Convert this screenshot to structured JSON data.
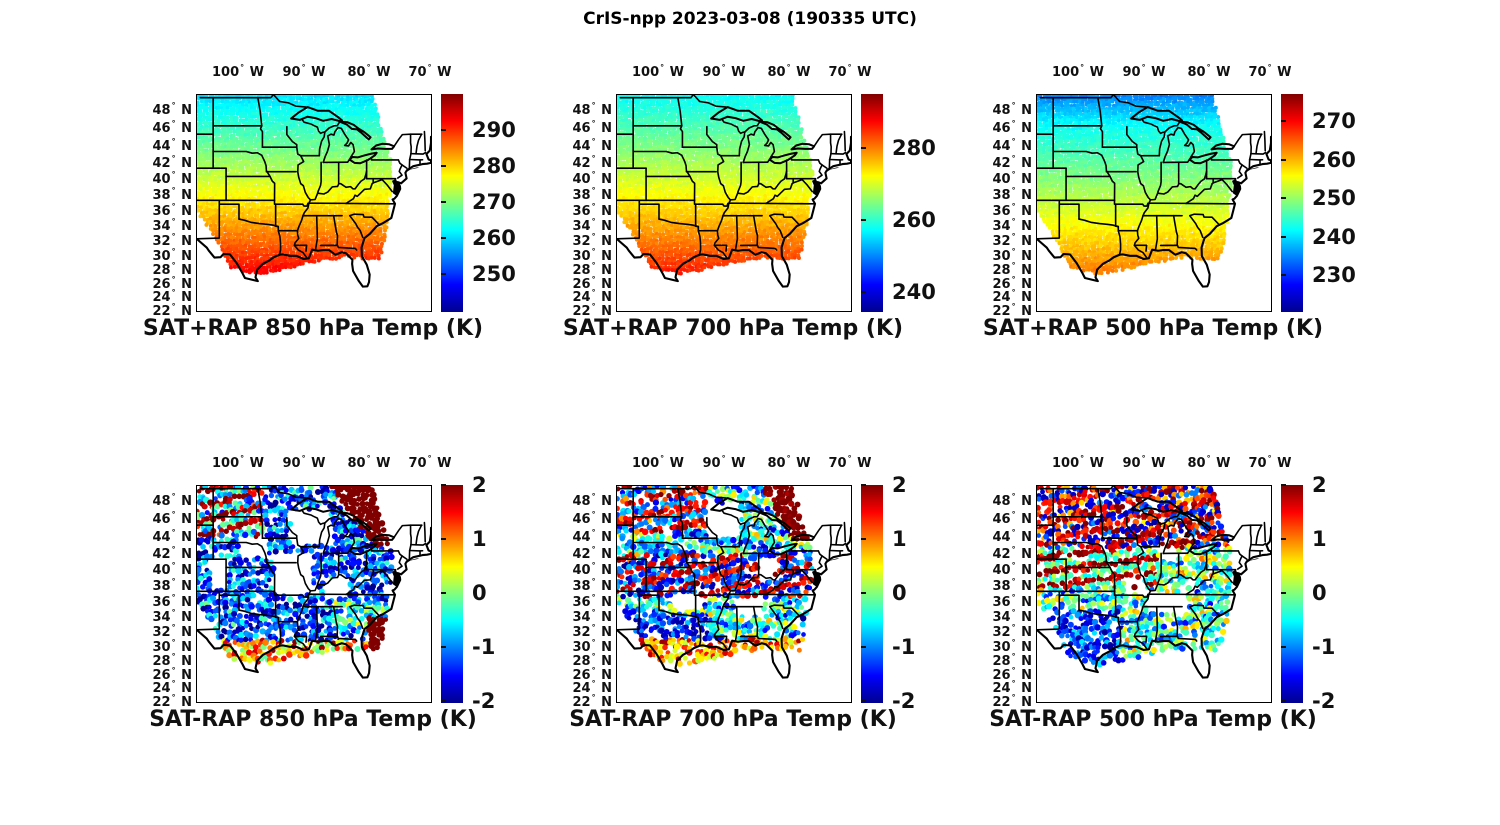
{
  "figure_title": "CrIS-npp 2023-03-08 (190335 UTC)",
  "colors": {
    "background": "#ffffff",
    "text": "#111111",
    "map_lines": "#000000",
    "colormap": "jet",
    "jet_stops": [
      "#00008F",
      "#0000FF",
      "#00FFFF",
      "#FFFF00",
      "#FF0000",
      "#800000"
    ]
  },
  "axes": {
    "lon_ticks": [
      "100° W",
      "90° W",
      "80° W",
      "70° W"
    ],
    "lon_values_deg_w": [
      100,
      90,
      80,
      70
    ],
    "lat_ticks": [
      "48° N",
      "46° N",
      "44° N",
      "42° N",
      "40° N",
      "38° N",
      "36° N",
      "34° N",
      "32° N",
      "30° N",
      "28° N",
      "26° N",
      "24° N",
      "22° N"
    ],
    "lat_values_deg_n": [
      48,
      46,
      44,
      42,
      40,
      38,
      36,
      34,
      32,
      30,
      28,
      26,
      24,
      22
    ],
    "projection": "mercator-like, lon ~106°W-70°W, lat ~21.6°N-49.5°N"
  },
  "chart_data": [
    {
      "id": "sat_plus_rap_850",
      "type": "heatmap",
      "title": "SAT+RAP 850 hPa Temp (K)",
      "units": "K",
      "colorbar": {
        "vmin": 240,
        "vmax": 300,
        "ticks": [
          290,
          280,
          270,
          260,
          250
        ]
      },
      "field": {
        "south_K": 293,
        "north_K": 261,
        "nw_extra_cool_K": 0
      },
      "pattern": "Smooth south-to-north gradient over the satellite swath (~106W-77W): ~292 K (orange-red) over south Texas and the Gulf coast decreasing to ~262 K (cyan) over the northern plains and Great Lakes."
    },
    {
      "id": "sat_plus_rap_700",
      "type": "heatmap",
      "title": "SAT+RAP 700 hPa Temp (K)",
      "units": "K",
      "colorbar": {
        "vmin": 235,
        "vmax": 295,
        "ticks": [
          280,
          260,
          240
        ]
      },
      "field": {
        "south_K": 286,
        "north_K": 258,
        "nw_extra_cool_K": 0
      },
      "pattern": "Smooth gradient: ~285 K (red-orange) over southwest Texas to ~259 K (cyan) across the northern border and upper Great Lakes."
    },
    {
      "id": "sat_plus_rap_500",
      "type": "heatmap",
      "title": "SAT+RAP 500 hPa Temp (K)",
      "units": "K",
      "colorbar": {
        "vmin": 221,
        "vmax": 277,
        "ticks": [
          270,
          260,
          250,
          240,
          230
        ]
      },
      "field": {
        "south_K": 263.5,
        "north_K": 239,
        "nw_extra_cool_K": 4
      },
      "pattern": "Gradient from ~263 K (orange) along the Gulf coast to ~240 K (cyan) in the north, coolest ~236 K (blue) band in the far northwest corner."
    },
    {
      "id": "sat_minus_rap_850",
      "type": "scatter",
      "title": "SAT-RAP 850 hPa Temp (K)",
      "units": "K",
      "colorbar": {
        "vmin": -2,
        "vmax": 2,
        "ticks": [
          2,
          1,
          0,
          -1,
          -2
        ]
      },
      "pattern": "Differences mostly -2 to 0 K (dark blue/cyan) over the central US; scan-line rows of +1 to +2 K (orange/red) over Montana/North Dakota; saturated +2 K dark-red blob over Lake Huron/Georgian Bay and off the Carolina-Florida coast; orange band along the southern swath edge; large data gaps over Missouri/Iowa and Wisconsin."
    },
    {
      "id": "sat_minus_rap_700",
      "type": "scatter",
      "title": "SAT-RAP 700 hPa Temp (K)",
      "units": "K",
      "colorbar": {
        "vmin": -2,
        "vmax": 2,
        "ticks": [
          2,
          1,
          0,
          -1,
          -2
        ]
      },
      "pattern": "Mixed +/-2 K scan-line streaks: orange rows over the northern plains, dark-red cluster near Lake Huron, alternating orange/blue bands through the central plains, dark-blue clusters over Texas and the mid-South, orange along the Gulf swath edge."
    },
    {
      "id": "sat_minus_rap_500",
      "type": "scatter",
      "title": "SAT-RAP 500 hPa Temp (K)",
      "units": "K",
      "colorbar": {
        "vmin": -2,
        "vmax": 2,
        "ticks": [
          2,
          1,
          0,
          -1,
          -2
        ]
      },
      "pattern": "Mostly +0.5 to +2 K (orange/red) streaks north of ~40N with scattered deep-blue clusters; strong red band near 38-41N; mostly -1.5 to 0 K (blue/cyan/green) south of 37N; gap over Tennessee."
    }
  ]
}
